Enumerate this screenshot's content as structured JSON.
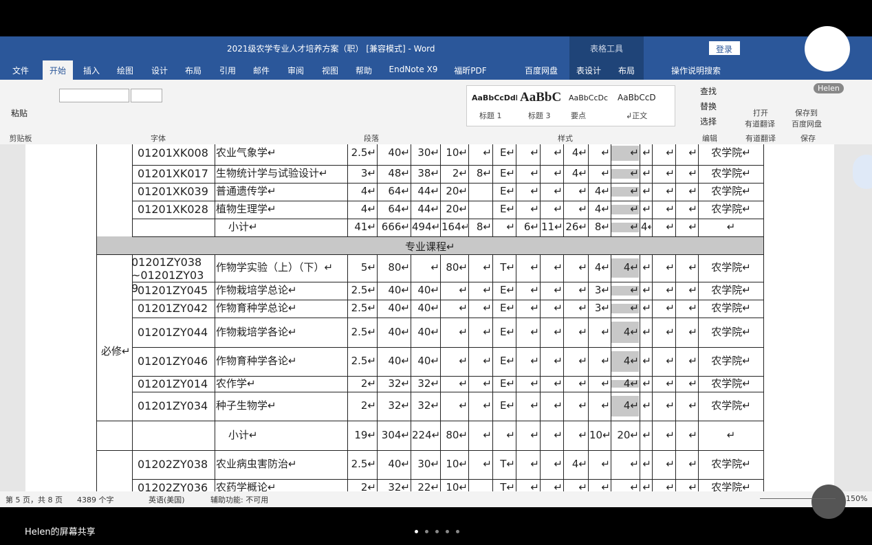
{
  "window": {
    "title": "2021级农学专业人才培养方案（职）  [兼容模式]  -  Word",
    "context_tab": "表格工具",
    "login": "登录",
    "user": "Helen"
  },
  "tabs": [
    "文件",
    "开始",
    "插入",
    "绘图",
    "设计",
    "布局",
    "引用",
    "邮件",
    "审阅",
    "视图",
    "帮助",
    "EndNote X9",
    "福昕PDF",
    "百度网盘",
    "表设计",
    "布局",
    "操作说明搜索"
  ],
  "ribbon": {
    "paste": "粘贴",
    "groups": [
      "剪贴板",
      "字体",
      "段落",
      "样式",
      "编辑",
      "有道翻译",
      "保存"
    ],
    "styles": [
      {
        "sample": "AaBbCcDdl",
        "name": "标题 1"
      },
      {
        "sample": "AaBbC",
        "name": "标题 3"
      },
      {
        "sample": "AaBbCcDc",
        "name": "要点"
      },
      {
        "sample": "AaBbCcD",
        "name": "↲正文"
      }
    ],
    "editing": [
      "查找",
      "替换",
      "选择"
    ],
    "youdao": [
      "打开",
      "有道翻译"
    ],
    "baidu": [
      "保存到",
      "百度网盘"
    ]
  },
  "table": {
    "group_label": "必修↵",
    "section": "专业课程↵",
    "rows": [
      [
        "01201XK008",
        "农业气象学↵",
        "2.5↵",
        "40↵",
        "30↵",
        "10↵",
        "↵",
        "E↵",
        "↵",
        "↵",
        "4↵",
        "↵",
        "↵",
        "↵",
        "↵",
        "↵",
        "农学院↵"
      ],
      [
        "01201XK017",
        "生物统计学与试验设计↵",
        "3↵",
        "48↵",
        "38↵",
        "2↵",
        "8↵",
        "E↵",
        "↵",
        "↵",
        "4↵",
        "↵",
        "↵",
        "↵",
        "↵",
        "↵",
        "农学院↵"
      ],
      [
        "01201XK039",
        "普通遗传学↵",
        "4↵",
        "64↵",
        "44↵",
        "20↵",
        null,
        "E↵",
        "↵",
        "↵",
        "↵",
        "4↵",
        "↵",
        "↵",
        "↵",
        "↵",
        "农学院↵"
      ],
      [
        "01201XK028",
        "植物生理学↵",
        "4↵",
        "64↵",
        "44↵",
        "20↵",
        null,
        "E↵",
        "↵",
        "↵",
        "↵",
        "4↵",
        "↵",
        "↵",
        "↵",
        "↵",
        "农学院↵"
      ],
      [
        null,
        "小计↵",
        "41↵",
        "666↵",
        "494↵",
        "164↵",
        "8↵",
        "↵",
        "6↵",
        "11↵",
        "26↵",
        "8↵",
        "↵",
        "4↵",
        "↵",
        "↵",
        "↵"
      ],
      [
        "01201ZY038~01201ZY039",
        "作物学实验（上）（下）↵",
        "5↵",
        "80↵",
        "↵",
        "80↵",
        "↵",
        "T↵",
        "↵",
        "↵",
        "↵",
        "4↵",
        "4↵",
        "↵",
        "↵",
        "↵",
        "农学院↵"
      ],
      [
        "01201ZY045",
        "作物栽培学总论↵",
        "2.5↵",
        "40↵",
        "40↵",
        "↵",
        "↵",
        "E↵",
        "↵",
        "↵",
        "↵",
        "3↵",
        "↵",
        "↵",
        "↵",
        "↵",
        "农学院↵"
      ],
      [
        "01201ZY042",
        "作物育种学总论↵",
        "2.5↵",
        "40↵",
        "40↵",
        "↵",
        "↵",
        "E↵",
        "↵",
        "↵",
        "↵",
        "3↵",
        "↵",
        "↵",
        "↵",
        "↵",
        "农学院↵"
      ],
      [
        "01201ZY044",
        "作物栽培学各论↵",
        "2.5↵",
        "40↵",
        "40↵",
        "↵",
        "↵",
        "E↵",
        "↵",
        "↵",
        "↵",
        "↵",
        "4↵",
        "↵",
        "↵",
        "↵",
        "农学院↵"
      ],
      [
        "01201ZY046",
        "作物育种学各论↵",
        "2.5↵",
        "40↵",
        "40↵",
        "↵",
        "↵",
        "E↵",
        "↵",
        "↵",
        "↵",
        "↵",
        "4↵",
        "↵",
        "↵",
        "↵",
        "农学院↵"
      ],
      [
        "01201ZY014",
        "农作学↵",
        "2↵",
        "32↵",
        "32↵",
        "↵",
        "↵",
        "E↵",
        "↵",
        "↵",
        "↵",
        "↵",
        "4↵",
        "↵",
        "↵",
        "↵",
        "农学院↵"
      ],
      [
        "01201ZY034",
        "种子生物学↵",
        "2↵",
        "32↵",
        "32↵",
        "↵",
        "↵",
        "E↵",
        "↵",
        "↵",
        "↵",
        "↵",
        "4↵",
        "↵",
        "↵",
        "↵",
        "农学院↵"
      ],
      [
        null,
        "小计↵",
        "19↵",
        "304↵",
        "224↵",
        "80↵",
        "↵",
        "↵",
        "↵",
        "↵",
        "↵",
        "10↵",
        "20↵",
        "↵",
        "↵",
        "↵",
        "↵"
      ],
      [
        "01202ZY038",
        "农业病虫害防治↵",
        "2.5↵",
        "40↵",
        "30↵",
        "10↵",
        "↵",
        "T↵",
        "↵",
        "↵",
        "4↵",
        "↵",
        "↵",
        "↵",
        "↵",
        "↵",
        "农学院↵"
      ],
      [
        "01202ZY036",
        "农药学概论↵",
        "2↵",
        "32↵",
        "22↵",
        "10↵",
        null,
        "T↵",
        "↵",
        "↵",
        "↵",
        "↵",
        "↵",
        "↵",
        "↵",
        "↵",
        "农学院↵"
      ]
    ]
  },
  "status": {
    "page": "第 5 页，共 8 页",
    "words": "4389 个字",
    "lang": "英语(美国)",
    "access": "辅助功能: 不可用",
    "zoom": "150%"
  },
  "share": "Helen的屏幕共享"
}
